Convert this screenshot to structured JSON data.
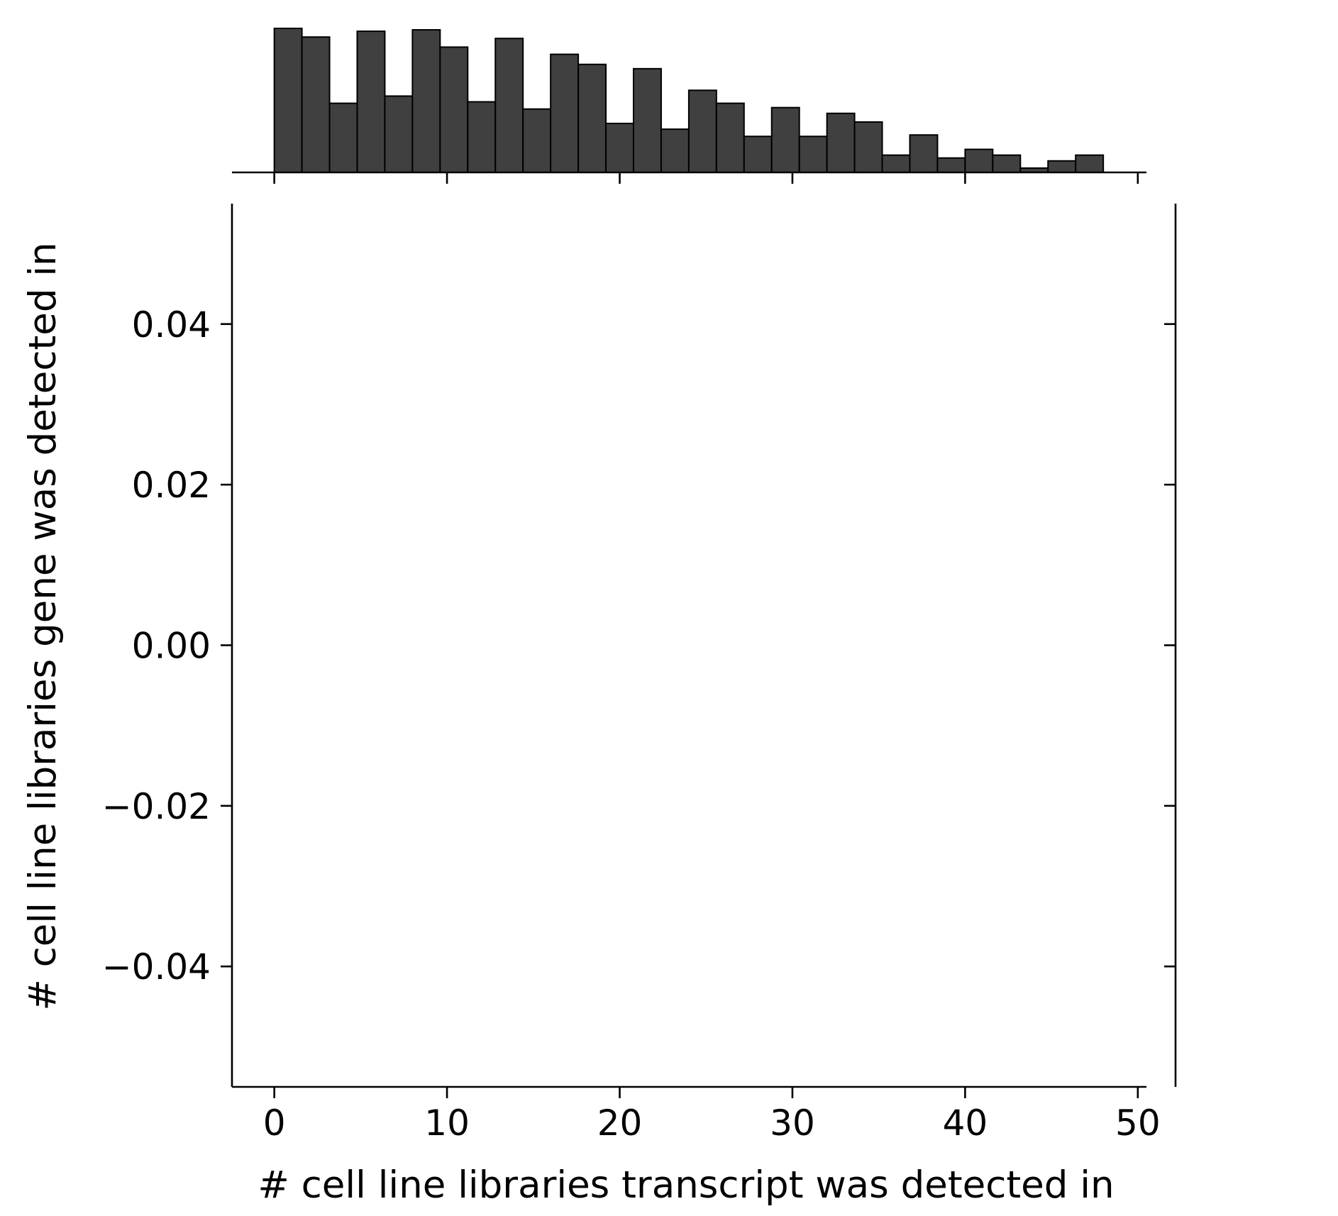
{
  "chart_data": {
    "type": "bar",
    "subtype": "jointplot-marginal-histogram",
    "title": "",
    "xlabel": "# cell line libraries transcript was detected in",
    "ylabel": "# cell line libraries gene was detected in",
    "xlim": [
      -2.45,
      50.5
    ],
    "ylim": [
      -0.055,
      0.055
    ],
    "x_ticks": [
      {
        "value": 0,
        "label": "0"
      },
      {
        "value": 10,
        "label": "10"
      },
      {
        "value": 20,
        "label": "20"
      },
      {
        "value": 30,
        "label": "30"
      },
      {
        "value": 40,
        "label": "40"
      },
      {
        "value": 50,
        "label": "50"
      }
    ],
    "y_ticks": [
      {
        "value": 0.04,
        "label": "0.04"
      },
      {
        "value": 0.02,
        "label": "0.02"
      },
      {
        "value": 0.0,
        "label": "0.00"
      },
      {
        "value": -0.02,
        "label": "−0.02"
      },
      {
        "value": -0.04,
        "label": "−0.04"
      }
    ],
    "joint_points": [],
    "marginal_x_histogram": {
      "bin_start": 0,
      "bin_width": 1.6,
      "bar_color": "#404040",
      "edge_color": "#000000",
      "relative_counts": [
        100,
        94,
        48,
        98,
        53,
        99,
        87,
        49,
        93,
        44,
        82,
        75,
        34,
        72,
        30,
        57,
        48,
        25,
        45,
        25,
        41,
        35,
        12,
        26,
        10,
        16,
        12,
        3,
        8,
        12
      ]
    },
    "grid": false,
    "legend": "none"
  }
}
